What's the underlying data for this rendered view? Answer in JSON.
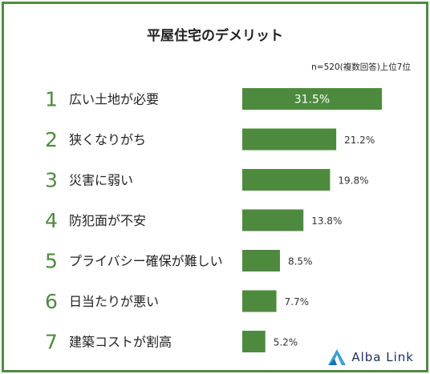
{
  "chart_data": {
    "type": "bar",
    "orientation": "horizontal",
    "title": "平屋住宅のデメリット",
    "note": "n=520(複数回答)上位7位",
    "ranks": [
      "1",
      "2",
      "3",
      "4",
      "5",
      "6",
      "7"
    ],
    "categories": [
      "広い土地が必要",
      "狭くなりがち",
      "災害に弱い",
      "防犯面が不安",
      "プライバシー確保が難しい",
      "日当たりが悪い",
      "建築コストが割高"
    ],
    "values": [
      31.5,
      21.2,
      19.8,
      13.8,
      8.5,
      7.7,
      5.2
    ],
    "value_labels": [
      "31.5%",
      "21.2%",
      "19.8%",
      "13.8%",
      "8.5%",
      "7.7%",
      "5.2%"
    ],
    "xlim": [
      0,
      31.5
    ],
    "grid": false,
    "bar_color": "#4e8a3e",
    "rank_color": "#4e8a3e"
  },
  "brand": {
    "name": "Alba Link",
    "color": "#1d2a55",
    "accent": "#3aa0d8"
  }
}
